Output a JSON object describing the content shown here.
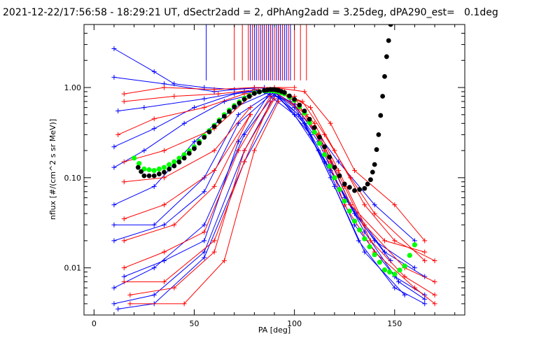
{
  "chart_data": {
    "type": "scatter",
    "title": "2021-12-22/17:56:58 - 18:29:21 UT, dSectr2add = 2, dPhAng2add = 3.25deg, dPA290_est=   0.1deg",
    "xlabel": "PA [deg]",
    "ylabel": "nflux [#/(cm^2 s sr MeV)]",
    "xlim": [
      -5,
      185
    ],
    "ylim": [
      0.003,
      5.0
    ],
    "yscale": "log",
    "x_ticks": [
      0,
      50,
      100,
      150
    ],
    "y_ticks": [
      {
        "value": 0.01,
        "label": "0.01"
      },
      {
        "value": 0.1,
        "label": "0.10"
      },
      {
        "value": 1.0,
        "label": "1.00"
      }
    ],
    "colors": {
      "blue": "#0000ff",
      "red": "#ff0000",
      "green": "#00ff00",
      "black": "#000000"
    },
    "series": [
      {
        "color": "blue",
        "style": "line+plus",
        "lines": [
          [
            [
              10,
              2.7
            ],
            [
              30,
              1.5
            ],
            [
              40,
              1.1
            ],
            [
              55,
              1.0
            ],
            [
              70,
              0.95
            ],
            [
              85,
              1.0
            ]
          ],
          [
            [
              10,
              1.3
            ],
            [
              35,
              1.1
            ],
            [
              60,
              0.9
            ],
            [
              80,
              1.0
            ],
            [
              92,
              0.95
            ]
          ],
          [
            [
              12,
              0.55
            ],
            [
              25,
              0.6
            ],
            [
              55,
              0.75
            ],
            [
              75,
              0.9
            ],
            [
              90,
              0.95
            ]
          ],
          [
            [
              10,
              0.22
            ],
            [
              30,
              0.35
            ],
            [
              50,
              0.6
            ],
            [
              70,
              0.85
            ],
            [
              88,
              0.95
            ]
          ],
          [
            [
              10,
              0.13
            ],
            [
              25,
              0.2
            ],
            [
              45,
              0.4
            ],
            [
              65,
              0.7
            ],
            [
              85,
              0.9
            ]
          ],
          [
            [
              10,
              0.05
            ],
            [
              30,
              0.08
            ],
            [
              50,
              0.25
            ],
            [
              70,
              0.6
            ],
            [
              88,
              0.9
            ]
          ],
          [
            [
              10,
              0.03
            ],
            [
              30,
              0.03
            ],
            [
              55,
              0.1
            ],
            [
              72,
              0.5
            ],
            [
              88,
              0.85
            ]
          ],
          [
            [
              10,
              0.02
            ],
            [
              35,
              0.03
            ],
            [
              55,
              0.07
            ],
            [
              72,
              0.4
            ],
            [
              90,
              0.9
            ]
          ],
          [
            [
              10,
              0.006
            ],
            [
              30,
              0.01
            ],
            [
              55,
              0.03
            ],
            [
              75,
              0.3
            ],
            [
              90,
              0.85
            ]
          ],
          [
            [
              10,
              0.004
            ],
            [
              30,
              0.005
            ],
            [
              55,
              0.015
            ],
            [
              75,
              0.2
            ],
            [
              90,
              0.8
            ]
          ],
          [
            [
              12,
              0.0035
            ],
            [
              30,
              0.004
            ],
            [
              55,
              0.013
            ],
            [
              75,
              0.15
            ],
            [
              92,
              0.75
            ]
          ],
          [
            [
              15,
              0.008
            ],
            [
              35,
              0.012
            ],
            [
              55,
              0.02
            ],
            [
              72,
              0.25
            ],
            [
              88,
              0.9
            ]
          ],
          [
            [
              88,
              0.95
            ],
            [
              100,
              0.6
            ],
            [
              112,
              0.25
            ],
            [
              125,
              0.06
            ],
            [
              140,
              0.02
            ],
            [
              160,
              0.01
            ]
          ],
          [
            [
              88,
              0.9
            ],
            [
              102,
              0.5
            ],
            [
              115,
              0.15
            ],
            [
              130,
              0.03
            ],
            [
              150,
              0.008
            ],
            [
              165,
              0.005
            ]
          ],
          [
            [
              90,
              0.85
            ],
            [
              105,
              0.4
            ],
            [
              118,
              0.1
            ],
            [
              132,
              0.02
            ],
            [
              150,
              0.006
            ],
            [
              165,
              0.004
            ]
          ],
          [
            [
              92,
              0.8
            ],
            [
              108,
              0.3
            ],
            [
              120,
              0.08
            ],
            [
              135,
              0.015
            ],
            [
              155,
              0.005
            ]
          ],
          [
            [
              85,
              0.9
            ],
            [
              100,
              0.5
            ],
            [
              112,
              0.2
            ],
            [
              128,
              0.05
            ],
            [
              145,
              0.015
            ],
            [
              165,
              0.008
            ]
          ],
          [
            [
              80,
              0.95
            ],
            [
              98,
              0.7
            ],
            [
              112,
              0.3
            ],
            [
              122,
              0.15
            ],
            [
              140,
              0.05
            ],
            [
              160,
              0.02
            ]
          ],
          [
            [
              88,
              0.95
            ],
            [
              100,
              0.65
            ],
            [
              115,
              0.22
            ],
            [
              130,
              0.04
            ],
            [
              148,
              0.012
            ]
          ],
          [
            [
              90,
              0.9
            ],
            [
              104,
              0.45
            ],
            [
              118,
              0.12
            ],
            [
              135,
              0.025
            ],
            [
              152,
              0.007
            ],
            [
              165,
              0.0045
            ]
          ]
        ]
      },
      {
        "color": "red",
        "style": "line+plus",
        "lines": [
          [
            [
              15,
              0.85
            ],
            [
              35,
              1.0
            ],
            [
              60,
              0.95
            ],
            [
              80,
              1.0
            ],
            [
              100,
              1.0
            ]
          ],
          [
            [
              15,
              0.7
            ],
            [
              40,
              0.8
            ],
            [
              62,
              0.85
            ],
            [
              82,
              0.95
            ]
          ],
          [
            [
              12,
              0.3
            ],
            [
              30,
              0.45
            ],
            [
              55,
              0.6
            ],
            [
              75,
              0.85
            ],
            [
              90,
              0.95
            ]
          ],
          [
            [
              15,
              0.15
            ],
            [
              35,
              0.2
            ],
            [
              60,
              0.35
            ],
            [
              78,
              0.8
            ]
          ],
          [
            [
              15,
              0.09
            ],
            [
              35,
              0.1
            ],
            [
              60,
              0.2
            ],
            [
              78,
              0.6
            ]
          ],
          [
            [
              15,
              0.035
            ],
            [
              35,
              0.05
            ],
            [
              60,
              0.12
            ],
            [
              78,
              0.5
            ]
          ],
          [
            [
              15,
              0.02
            ],
            [
              40,
              0.03
            ],
            [
              60,
              0.08
            ],
            [
              78,
              0.5
            ]
          ],
          [
            [
              15,
              0.01
            ],
            [
              35,
              0.015
            ],
            [
              55,
              0.025
            ],
            [
              72,
              0.2
            ],
            [
              88,
              0.8
            ]
          ],
          [
            [
              15,
              0.007
            ],
            [
              35,
              0.007
            ],
            [
              60,
              0.02
            ],
            [
              75,
              0.15
            ],
            [
              88,
              0.7
            ]
          ],
          [
            [
              18,
              0.005
            ],
            [
              40,
              0.006
            ],
            [
              60,
              0.015
            ],
            [
              75,
              0.2
            ],
            [
              90,
              0.75
            ]
          ],
          [
            [
              18,
              0.004
            ],
            [
              45,
              0.004
            ],
            [
              65,
              0.012
            ],
            [
              80,
              0.2
            ],
            [
              92,
              0.7
            ]
          ],
          [
            [
              90,
              1.0
            ],
            [
              105,
              0.9
            ],
            [
              118,
              0.4
            ],
            [
              130,
              0.12
            ],
            [
              150,
              0.05
            ],
            [
              165,
              0.02
            ]
          ],
          [
            [
              92,
              0.95
            ],
            [
              108,
              0.6
            ],
            [
              120,
              0.2
            ],
            [
              135,
              0.05
            ],
            [
              150,
              0.02
            ],
            [
              170,
              0.012
            ]
          ],
          [
            [
              95,
              0.9
            ],
            [
              110,
              0.4
            ],
            [
              122,
              0.12
            ],
            [
              135,
              0.03
            ],
            [
              155,
              0.01
            ],
            [
              170,
              0.007
            ]
          ],
          [
            [
              95,
              0.85
            ],
            [
              112,
              0.3
            ],
            [
              125,
              0.08
            ],
            [
              138,
              0.02
            ],
            [
              155,
              0.008
            ],
            [
              170,
              0.005
            ]
          ],
          [
            [
              100,
              0.8
            ],
            [
              115,
              0.2
            ],
            [
              125,
              0.05
            ],
            [
              140,
              0.015
            ],
            [
              160,
              0.006
            ],
            [
              170,
              0.004
            ]
          ],
          [
            [
              90,
              0.9
            ],
            [
              106,
              0.5
            ],
            [
              118,
              0.15
            ],
            [
              128,
              0.05
            ],
            [
              145,
              0.02
            ],
            [
              165,
              0.015
            ]
          ],
          [
            [
              88,
              0.95
            ],
            [
              104,
              0.7
            ],
            [
              115,
              0.3
            ],
            [
              128,
              0.1
            ],
            [
              140,
              0.04
            ],
            [
              165,
              0.012
            ]
          ]
        ]
      },
      {
        "color": "green",
        "style": "dots",
        "x": [
          20,
          25,
          30,
          35,
          40,
          45,
          50,
          55,
          60,
          65,
          70,
          75,
          80,
          85,
          88,
          90,
          92,
          95,
          100,
          105,
          110,
          115,
          120,
          125,
          130,
          135,
          140,
          145,
          150,
          155,
          160
        ],
        "y": [
          0.165,
          0.125,
          0.12,
          0.13,
          0.15,
          0.18,
          0.22,
          0.29,
          0.38,
          0.5,
          0.63,
          0.76,
          0.87,
          0.92,
          0.93,
          0.92,
          0.9,
          0.85,
          0.72,
          0.52,
          0.32,
          0.18,
          0.1,
          0.055,
          0.033,
          0.021,
          0.014,
          0.0095,
          0.0085,
          0.0105,
          0.018
        ]
      },
      {
        "color": "black",
        "style": "dots",
        "x": [
          22,
          25,
          30,
          35,
          40,
          45,
          50,
          55,
          60,
          65,
          70,
          75,
          80,
          85,
          88,
          90,
          92,
          95,
          100,
          105,
          110,
          115,
          120,
          125,
          130,
          135,
          138,
          140,
          142,
          144,
          146,
          148
        ],
        "y": [
          0.13,
          0.105,
          0.105,
          0.115,
          0.135,
          0.165,
          0.21,
          0.28,
          0.37,
          0.48,
          0.61,
          0.74,
          0.86,
          0.93,
          0.95,
          0.95,
          0.93,
          0.88,
          0.74,
          0.55,
          0.36,
          0.22,
          0.13,
          0.085,
          0.072,
          0.076,
          0.095,
          0.14,
          0.3,
          0.8,
          2.2,
          5.0
        ]
      }
    ],
    "vertical_marks": {
      "blue_x": [
        56,
        78,
        80,
        81,
        83,
        84,
        85,
        86,
        87,
        88,
        89,
        90,
        91,
        92,
        93,
        94,
        95,
        96,
        97,
        98
      ],
      "red_x": [
        70,
        74,
        77,
        79,
        82,
        84,
        86,
        88,
        90,
        92,
        94,
        97,
        100,
        103,
        106
      ],
      "from_y": 1.2
    }
  }
}
